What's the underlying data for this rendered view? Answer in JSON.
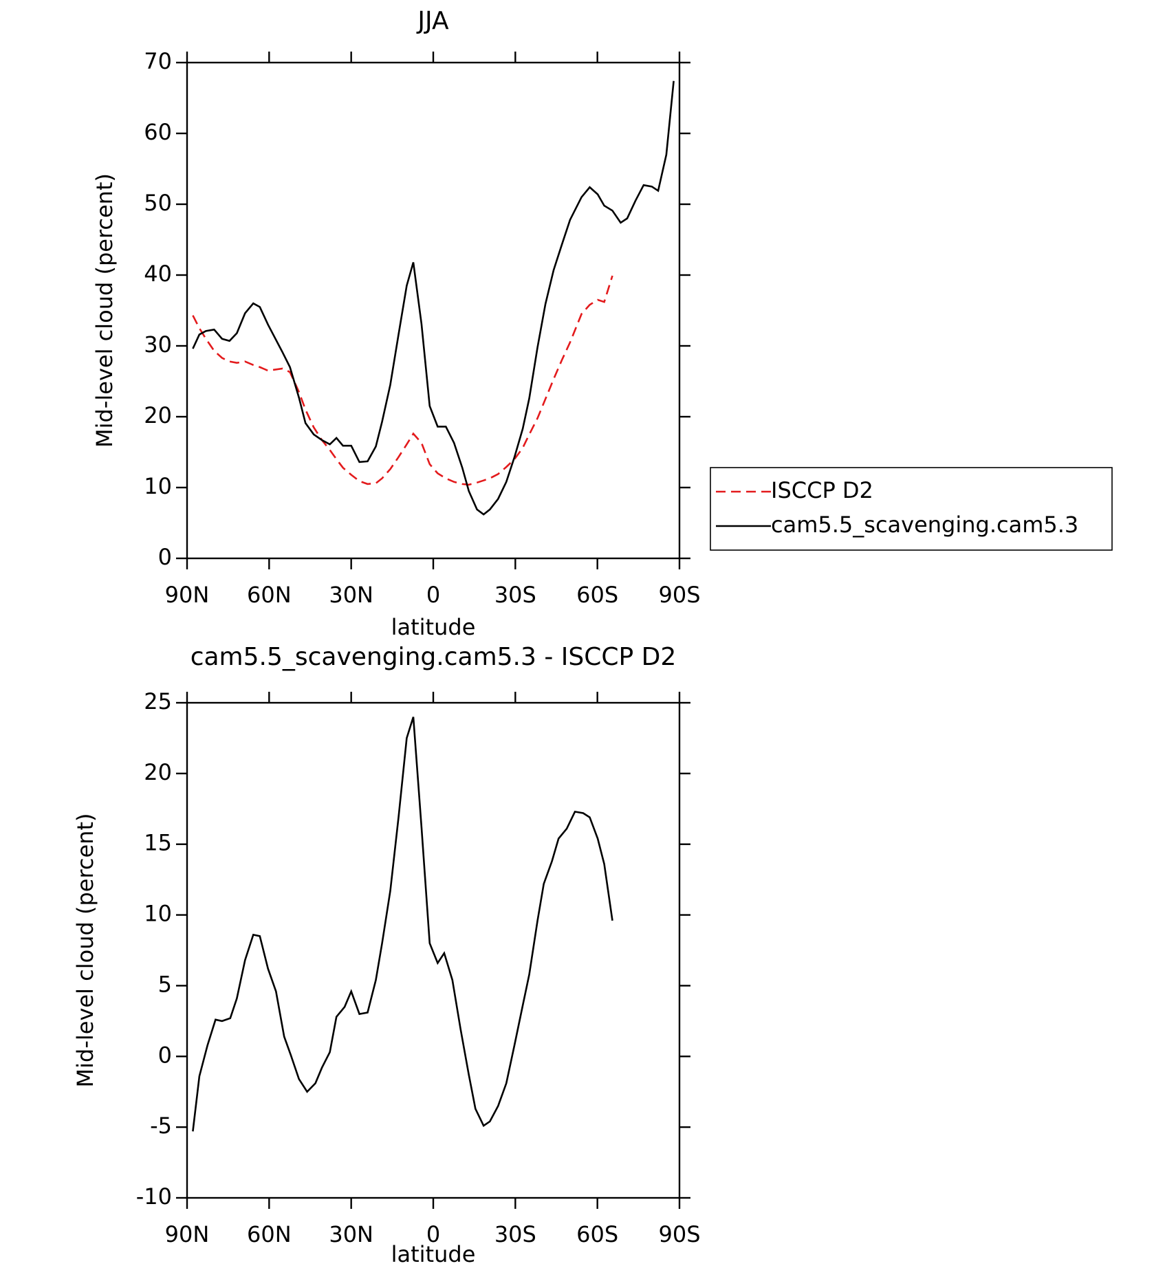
{
  "chart_data": [
    {
      "type": "line",
      "title": "JJA",
      "xlabel": "latitude",
      "ylabel": "Mid-level cloud (percent)",
      "x": [
        87.9,
        85.5,
        83.1,
        80.1,
        77.2,
        74.5,
        71.8,
        68.8,
        65.8,
        63.4,
        60.4,
        55.1,
        52.4,
        49.1,
        46.7,
        43.7,
        40.7,
        37.8,
        35.4,
        33.0,
        30.0,
        27.0,
        24.0,
        21.0,
        18.7,
        15.7,
        12.7,
        9.7,
        7.3,
        4.3,
        1.3,
        -1.6,
        -4.6,
        -7.6,
        -10.6,
        -13.0,
        -16.0,
        -18.4,
        -20.7,
        -23.7,
        -26.7,
        -29.7,
        -32.7,
        -35.1,
        -38.1,
        -41.0,
        -44.0,
        -47.0,
        -50.0,
        -54.2,
        -57.2,
        -60.1,
        -62.5,
        -65.5,
        -68.5,
        -70.9,
        -73.9,
        -76.9,
        -79.9,
        -82.2,
        -85.2,
        -87.9
      ],
      "series": [
        {
          "name": "ISCCP D2",
          "color": "#e31a1c",
          "dashed": true,
          "values": [
            34.3,
            32.5,
            31.0,
            29.3,
            28.3,
            27.8,
            27.6,
            27.8,
            27.3,
            27.0,
            26.5,
            26.8,
            26.3,
            23.5,
            21.0,
            18.5,
            16.7,
            15.3,
            14.0,
            12.8,
            11.8,
            10.9,
            10.5,
            10.6,
            11.3,
            12.6,
            14.3,
            16.1,
            17.6,
            16.3,
            13.3,
            12.0,
            11.3,
            10.8,
            10.5,
            10.4,
            10.7,
            11.0,
            11.3,
            11.9,
            12.9,
            14.0,
            15.6,
            17.5,
            19.8,
            22.5,
            25.3,
            28.0,
            30.5,
            34.5,
            35.8,
            36.5,
            36.2,
            39.9,
            null,
            null,
            null,
            null,
            null,
            null,
            null,
            null
          ]
        },
        {
          "name": "cam5.5_scavenging.cam5.3",
          "color": "#000000",
          "dashed": false,
          "values": [
            29.6,
            31.6,
            32.1,
            32.3,
            31.0,
            30.7,
            31.8,
            34.6,
            36.0,
            35.5,
            33.0,
            29.1,
            27.0,
            22.7,
            19.1,
            17.5,
            16.7,
            16.1,
            17.0,
            15.9,
            15.9,
            13.6,
            13.7,
            15.8,
            19.3,
            24.5,
            31.6,
            38.5,
            41.8,
            33.1,
            21.5,
            18.6,
            18.6,
            16.3,
            12.8,
            9.5,
            6.9,
            6.2,
            6.9,
            8.4,
            10.8,
            14.3,
            18.3,
            22.6,
            29.8,
            35.9,
            40.7,
            44.3,
            47.8,
            51.0,
            52.4,
            51.4,
            49.8,
            49.1,
            47.4,
            48.0,
            50.5,
            52.7,
            52.5,
            51.9,
            57.0,
            67.4
          ]
        }
      ],
      "xlim": [
        90,
        -90
      ],
      "xticks": [
        {
          "value": 90,
          "label": "90N"
        },
        {
          "value": 60,
          "label": "60N"
        },
        {
          "value": 30,
          "label": "30N"
        },
        0,
        {
          "value": -30,
          "label": "30S"
        },
        {
          "value": -60,
          "label": "60S"
        },
        {
          "value": -90,
          "label": "90S"
        }
      ],
      "ylim": [
        0,
        70
      ],
      "yticks": [
        0,
        10,
        20,
        30,
        40,
        50,
        60,
        70
      ],
      "legend": "right"
    },
    {
      "type": "line",
      "title": "cam5.5_scavenging.cam5.3 - ISCCP D2",
      "xlabel": "latitude",
      "ylabel": "Mid-level cloud (percent)",
      "x": [
        87.9,
        85.5,
        82.5,
        79.6,
        77.2,
        74.2,
        71.8,
        68.8,
        65.8,
        63.4,
        60.4,
        57.5,
        54.5,
        52.1,
        49.1,
        46.1,
        43.1,
        40.7,
        37.8,
        35.4,
        32.4,
        30.0,
        27.0,
        24.0,
        21.0,
        18.7,
        15.7,
        12.7,
        9.7,
        7.3,
        4.3,
        1.3,
        -1.6,
        -4.0,
        -7.0,
        -10.0,
        -13.0,
        -15.4,
        -18.4,
        -20.7,
        -23.7,
        -26.7,
        -29.7,
        -32.7,
        -35.1,
        -38.1,
        -40.4,
        -43.4,
        -45.8,
        -48.8,
        -51.8,
        -54.8,
        -57.2,
        -60.1,
        -62.5,
        -65.5
      ],
      "series": [
        {
          "color": "#000000",
          "dashed": false,
          "values": [
            -5.3,
            -1.4,
            0.8,
            2.6,
            2.5,
            2.7,
            4.1,
            6.8,
            8.6,
            8.5,
            6.2,
            4.6,
            1.4,
            0.1,
            -1.6,
            -2.5,
            -1.9,
            -0.8,
            0.3,
            2.8,
            3.5,
            4.6,
            3.0,
            3.1,
            5.4,
            8.0,
            11.7,
            16.9,
            22.5,
            24.0,
            16.2,
            8.0,
            6.6,
            7.3,
            5.4,
            1.9,
            -1.3,
            -3.7,
            -4.9,
            -4.6,
            -3.5,
            -1.9,
            0.8,
            3.6,
            5.8,
            9.6,
            12.2,
            13.8,
            15.4,
            16.1,
            17.3,
            17.2,
            16.9,
            15.4,
            13.6,
            9.6
          ]
        }
      ],
      "xlim": [
        90,
        -90
      ],
      "xticks": [
        {
          "value": 90,
          "label": "90N"
        },
        {
          "value": 60,
          "label": "60N"
        },
        {
          "value": 30,
          "label": "30N"
        },
        0,
        {
          "value": -30,
          "label": "30S"
        },
        {
          "value": -60,
          "label": "60S"
        },
        {
          "value": -90,
          "label": "90S"
        }
      ],
      "ylim": [
        -10,
        25
      ],
      "yticks": [
        -10,
        -5,
        0,
        5,
        10,
        15,
        20,
        25
      ]
    }
  ]
}
